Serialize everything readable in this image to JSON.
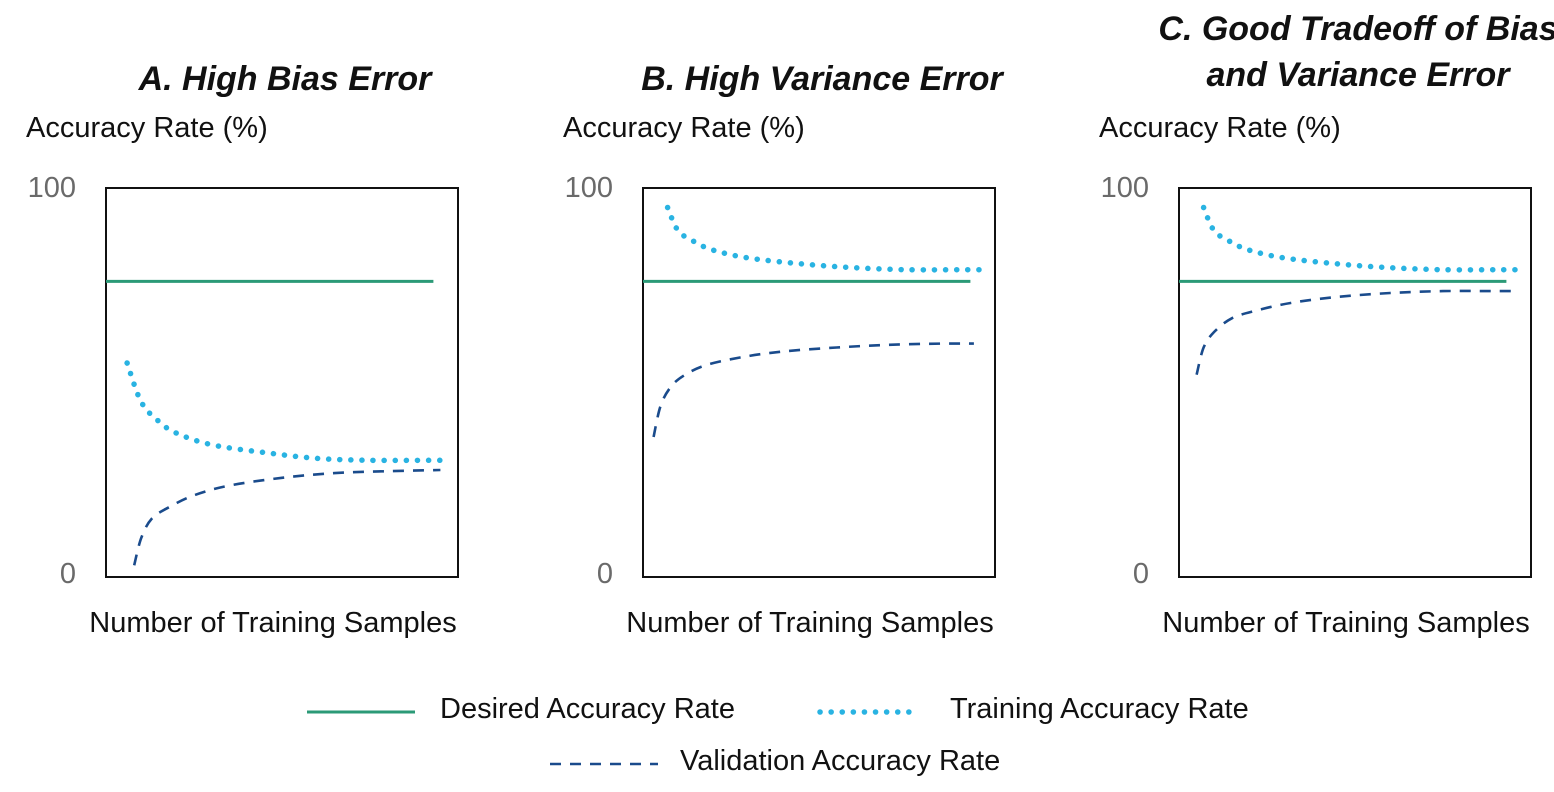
{
  "colors": {
    "desired": "#2b9a77",
    "training": "#29b3e2",
    "validation": "#1a4b8c",
    "frame": "#111111",
    "tick": "#6a6a6a"
  },
  "legend": {
    "desired": "Desired Accuracy Rate",
    "training": "Training Accuracy Rate",
    "validation": "Validation Accuracy Rate"
  },
  "chart_data": [
    {
      "type": "line",
      "title": "A. High Bias Error",
      "title_lines": [
        "A. High Bias Error"
      ],
      "ylabel": "Accuracy Rate (%)",
      "xlabel": "Number of Training Samples",
      "ylim": [
        0,
        100
      ],
      "yticks": [
        "100",
        "0"
      ],
      "grid": false,
      "series": [
        {
          "name": "Desired Accuracy Rate",
          "style": "solid",
          "x": [
            0,
            93
          ],
          "y": [
            76,
            76
          ]
        },
        {
          "name": "Training Accuracy Rate",
          "style": "dotted",
          "x": [
            6,
            10,
            15,
            20,
            30,
            45,
            60,
            75,
            90,
            96
          ],
          "y": [
            55,
            45,
            40,
            37,
            34,
            32,
            30.5,
            30,
            30,
            30
          ]
        },
        {
          "name": "Validation Accuracy Rate",
          "style": "dashed",
          "x": [
            8,
            10,
            13,
            18,
            25,
            35,
            50,
            65,
            80,
            95
          ],
          "y": [
            3,
            10,
            15,
            18,
            21,
            23.5,
            25.5,
            26.7,
            27.2,
            27.5
          ]
        }
      ]
    },
    {
      "type": "line",
      "title": "B. High Variance Error",
      "title_lines": [
        "B. High Variance Error"
      ],
      "ylabel": "Accuracy Rate (%)",
      "xlabel": "Number of Training Samples",
      "ylim": [
        0,
        100
      ],
      "yticks": [
        "100",
        "0"
      ],
      "grid": false,
      "series": [
        {
          "name": "Desired Accuracy Rate",
          "style": "solid",
          "x": [
            0,
            93
          ],
          "y": [
            76,
            76
          ]
        },
        {
          "name": "Training Accuracy Rate",
          "style": "dotted",
          "x": [
            7,
            10,
            15,
            20,
            30,
            45,
            60,
            75,
            90,
            96
          ],
          "y": [
            95,
            89,
            86,
            84,
            82,
            80.5,
            79.5,
            79,
            79,
            79
          ]
        },
        {
          "name": "Validation Accuracy Rate",
          "style": "dashed",
          "x": [
            3,
            5,
            8,
            12,
            18,
            28,
            40,
            55,
            70,
            85,
            94
          ],
          "y": [
            36,
            44,
            49,
            52,
            54.5,
            56.5,
            58,
            59,
            59.7,
            60,
            60
          ]
        }
      ]
    },
    {
      "type": "line",
      "title": "C. Good Tradeoff of Bias and Variance Error",
      "title_lines": [
        "C. Good Tradeoff of Bias",
        "and Variance Error"
      ],
      "ylabel": "Accuracy Rate (%)",
      "xlabel": "Number of Training Samples",
      "ylim": [
        0,
        100
      ],
      "yticks": [
        "100",
        "0"
      ],
      "grid": false,
      "series": [
        {
          "name": "Desired Accuracy Rate",
          "style": "solid",
          "x": [
            0,
            93
          ],
          "y": [
            76,
            76
          ]
        },
        {
          "name": "Training Accuracy Rate",
          "style": "dotted",
          "x": [
            7,
            10,
            15,
            20,
            30,
            45,
            60,
            75,
            90,
            96
          ],
          "y": [
            95,
            89,
            86,
            84,
            82,
            80.5,
            79.5,
            79,
            79,
            79
          ]
        },
        {
          "name": "Validation Accuracy Rate",
          "style": "dashed",
          "x": [
            5,
            7,
            10,
            15,
            22,
            32,
            45,
            60,
            75,
            90,
            95
          ],
          "y": [
            52,
            59,
            63,
            66.5,
            68.5,
            70.5,
            72,
            73,
            73.5,
            73.5,
            73.5
          ]
        }
      ]
    }
  ]
}
